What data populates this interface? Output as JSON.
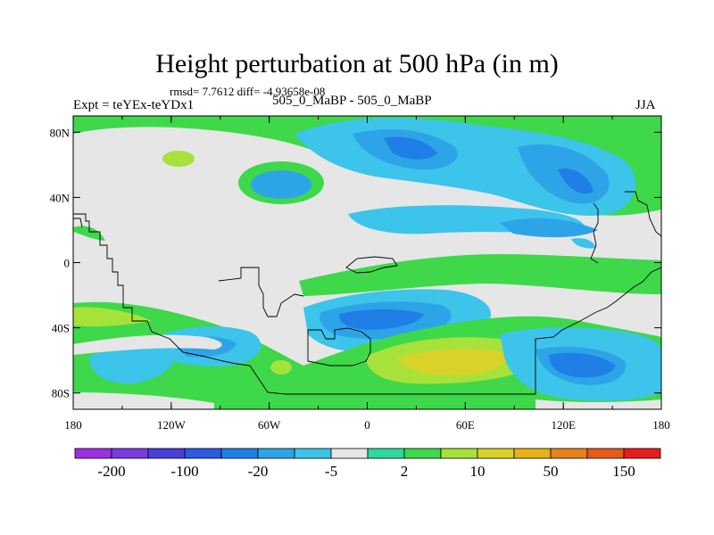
{
  "title": "Height perturbation at 500 hPa (in m)",
  "stats": "rmsd= 7.7612 diff= -4.93658e-08",
  "left_label": "Expt = teYEx-teYDx1",
  "center_label": "505_0_MaBP - 505_0_MaBP",
  "right_label": "JJA",
  "map": {
    "lon_range": [
      -180,
      180
    ],
    "lat_range": [
      -90,
      90
    ],
    "x_ticks": [
      {
        "lon": -180,
        "label": "180"
      },
      {
        "lon": -120,
        "label": "120W"
      },
      {
        "lon": -60,
        "label": "60W"
      },
      {
        "lon": 0,
        "label": "0"
      },
      {
        "lon": 60,
        "label": "60E"
      },
      {
        "lon": 120,
        "label": "120E"
      },
      {
        "lon": 180,
        "label": "180"
      }
    ],
    "y_ticks": [
      {
        "lat": 80,
        "label": "80N"
      },
      {
        "lat": 40,
        "label": "40N"
      },
      {
        "lat": 0,
        "label": "0"
      },
      {
        "lat": -40,
        "label": "40S"
      },
      {
        "lat": -80,
        "label": "80S"
      }
    ],
    "background_color": "#e6e6e6"
  },
  "colorbar": {
    "colors": [
      "#9b30e0",
      "#7a3ce0",
      "#4a3fd8",
      "#2c5ae0",
      "#1f7fe6",
      "#2ea4e8",
      "#3cc4ea",
      "#e6e6e6",
      "#2fd8a0",
      "#3ed84a",
      "#a6e23a",
      "#d8d22a",
      "#e6b21a",
      "#e6821a",
      "#e65a1a",
      "#e61e1e"
    ],
    "labels": [
      "-200",
      "-100",
      "-20",
      "-5",
      "2",
      "10",
      "50",
      "150"
    ]
  }
}
